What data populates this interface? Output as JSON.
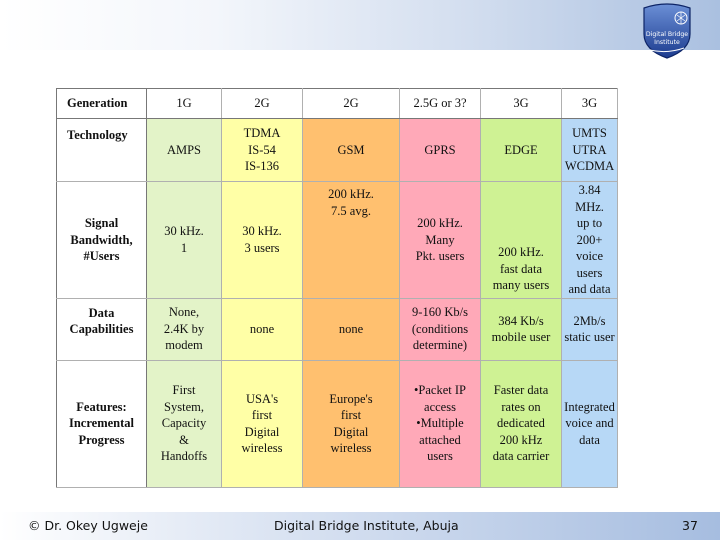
{
  "logo": {
    "line1": "Digital Bridge",
    "line2": "Institute"
  },
  "table": {
    "header": [
      "Generation",
      "1G",
      "2G",
      "2G",
      "2.5G or 3?",
      "3G",
      "3G"
    ],
    "rows": [
      [
        "Technology",
        "AMPS",
        "TDMA\nIS-54\nIS-136",
        "GSM",
        "GPRS",
        "EDGE",
        "UMTS\nUTRA\nWCDMA"
      ],
      [
        "Signal\nBandwidth,\n#Users",
        "30 kHz.\n1",
        "30 kHz.\n3 users",
        "200 kHz.\n7.5 avg.",
        "200 kHz.\nMany\nPkt. users",
        "200 kHz.\nfast data\nmany users",
        "3.84 MHz.\nup to 200+\nvoice users\nand data"
      ],
      [
        "Data\nCapabilities",
        "None,\n2.4K by\nmodem",
        "none",
        "none",
        "9-160 Kb/s\n(conditions\ndetermine)",
        "384 Kb/s\nmobile user",
        "2Mb/s\nstatic user"
      ],
      [
        "Features:\nIncremental\nProgress",
        "First\nSystem,\nCapacity\n&\nHandoffs",
        "USA's\nfirst\nDigital\nwireless",
        "Europe's\nfirst\nDigital\nwireless",
        "•Packet IP\naccess\n•Multiple\nattached\nusers",
        "Faster data\nrates on\ndedicated\n200 kHz\ndata carrier",
        "Integrated\nvoice and\ndata"
      ]
    ]
  },
  "footer": {
    "left": "© Dr. Okey Ugweje",
    "center": "Digital Bridge Institute, Abuja",
    "page": "37"
  },
  "colors": {
    "col_1g": "#e3f3c8",
    "col_2g_tdma": "#ffffa6",
    "col_2g_gsm": "#ffc06f",
    "col_25g": "#ffa9b8",
    "col_3g_edge": "#cff294",
    "col_3g_umts": "#b7d8f6"
  }
}
